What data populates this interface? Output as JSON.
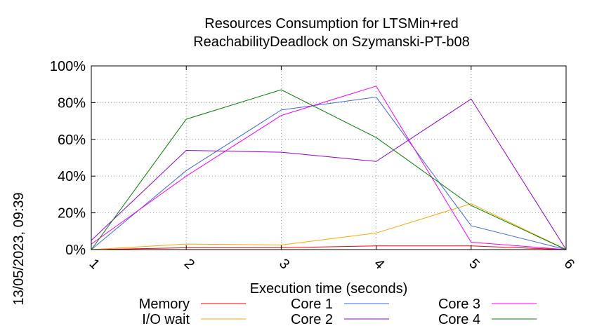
{
  "chart_data": {
    "type": "line",
    "title_lines": [
      "Resources Consumption for LTSMin+red",
      "ReachabilityDeadlock on Szymanski-PT-b08"
    ],
    "xlabel": "Execution time (seconds)",
    "ylabel": "",
    "side_label": "13/05/2023, 09:39",
    "x": [
      1,
      2,
      3,
      4,
      5,
      6
    ],
    "x_tick_labels": [
      "1",
      "2",
      "3",
      "4",
      "5",
      "6"
    ],
    "xlim": [
      1,
      6
    ],
    "ylim": [
      0,
      100
    ],
    "y_ticks": [
      0,
      20,
      40,
      60,
      80,
      100
    ],
    "y_tick_labels": [
      "0%",
      "20%",
      "40%",
      "60%",
      "80%",
      "100%"
    ],
    "grid": true,
    "legend_position": "bottom",
    "series": [
      {
        "name": "Memory",
        "color": "#ff0000",
        "values": [
          0,
          1,
          1,
          2,
          2,
          0
        ]
      },
      {
        "name": "I/O wait",
        "color": "#ffa500",
        "values": [
          0,
          3,
          2.5,
          9,
          25,
          0
        ]
      },
      {
        "name": "Core 1",
        "color": "#4169e1",
        "values": [
          0,
          43,
          76,
          83,
          13,
          0
        ]
      },
      {
        "name": "Core 2",
        "color": "#9400d3",
        "values": [
          5,
          54,
          53,
          48,
          82,
          0
        ]
      },
      {
        "name": "Core 3",
        "color": "#ff00ff",
        "values": [
          3,
          40,
          73,
          89,
          4,
          0
        ]
      },
      {
        "name": "Core 4",
        "color": "#008000",
        "values": [
          0,
          71,
          87,
          61,
          24,
          0
        ]
      }
    ]
  }
}
